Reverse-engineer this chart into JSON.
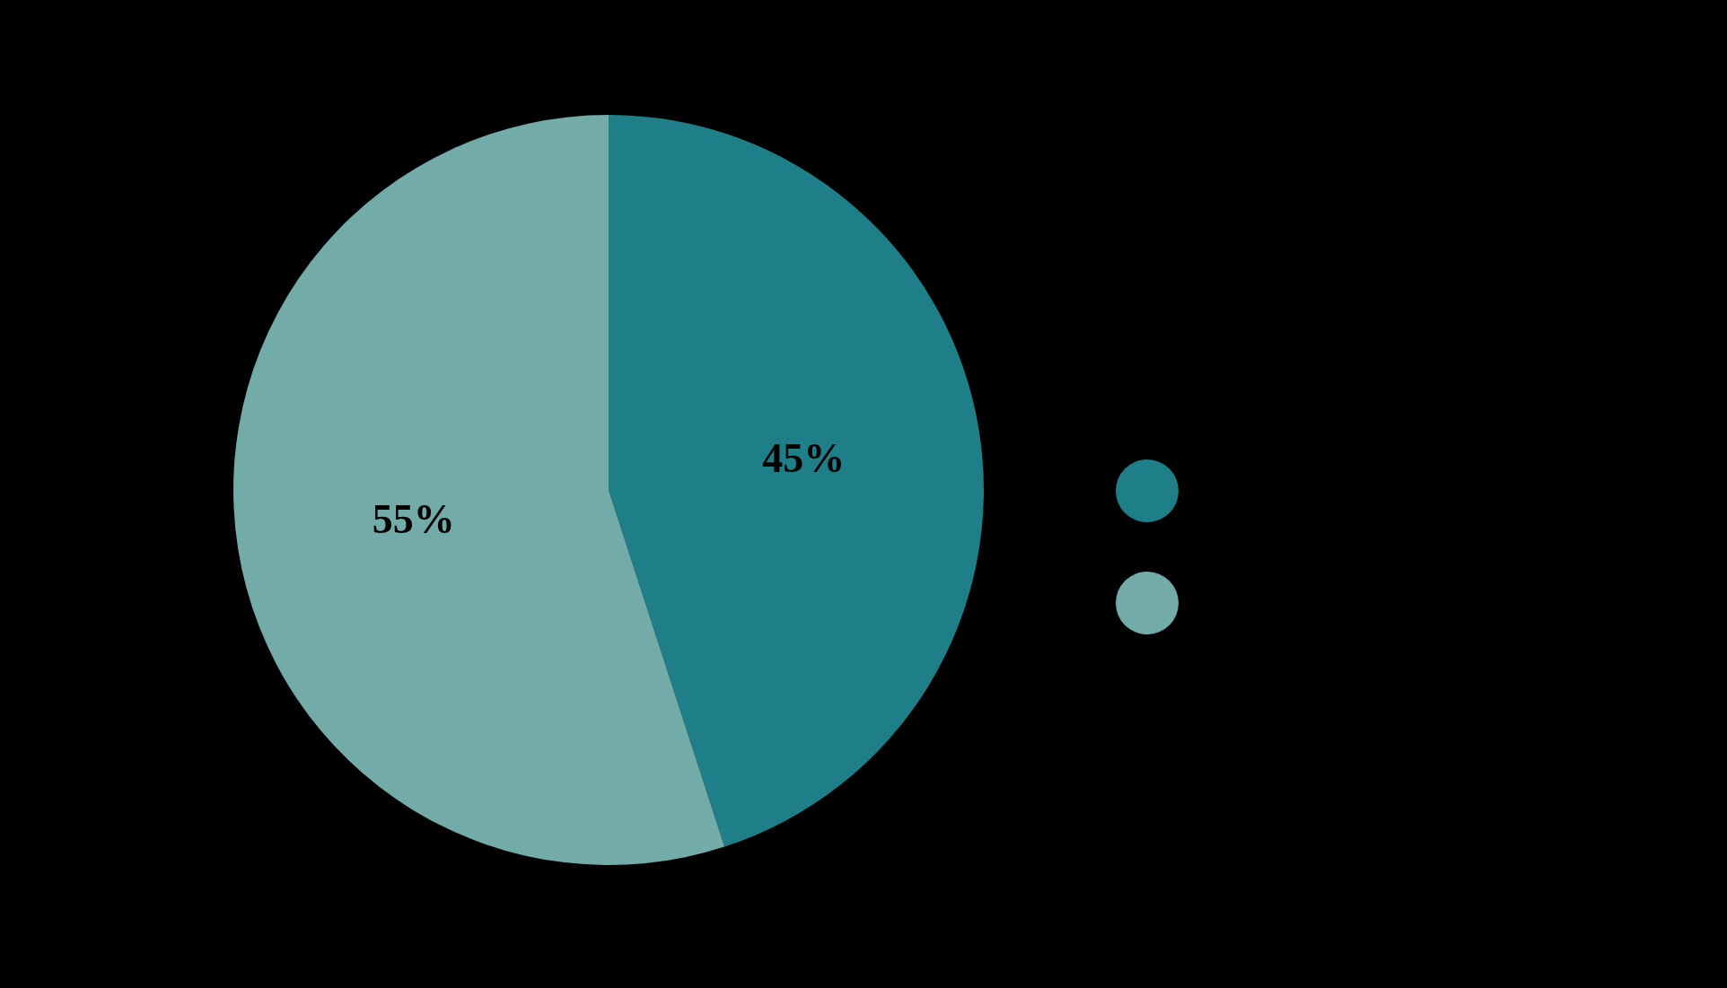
{
  "chart_data": {
    "type": "pie",
    "categories": [
      null,
      null
    ],
    "values": [
      45,
      55
    ],
    "colors": [
      "#1f7f88",
      "#73aba8"
    ],
    "value_labels": [
      "45%",
      "55%"
    ]
  }
}
